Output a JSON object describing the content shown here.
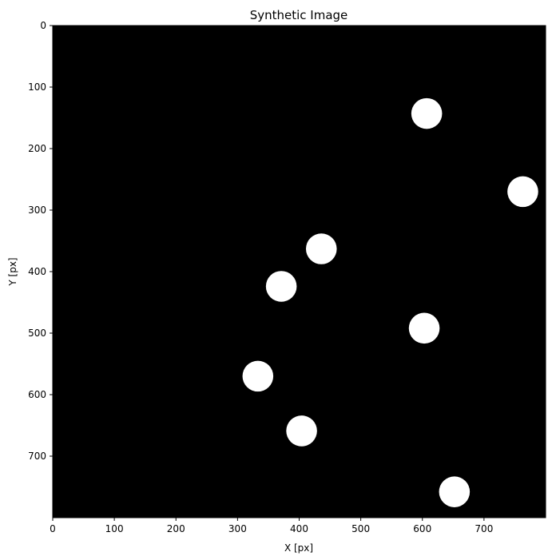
{
  "chart_data": {
    "type": "scatter",
    "title": "Synthetic Image",
    "xlabel": "X [px]",
    "ylabel": "Y [px]",
    "xlim": [
      0,
      800
    ],
    "ylim": [
      800,
      0
    ],
    "y_axis_inverted": true,
    "grid": false,
    "legend": "none",
    "x_ticks": [
      0,
      100,
      200,
      300,
      400,
      500,
      600,
      700
    ],
    "y_ticks": [
      0,
      100,
      200,
      300,
      400,
      500,
      600,
      700
    ],
    "background_color": "#000000",
    "marker_color": "#ffffff",
    "marker_shape": "filled-circle",
    "marker_radius": 25,
    "points": [
      {
        "x": 607,
        "y": 143
      },
      {
        "x": 763,
        "y": 270
      },
      {
        "x": 436,
        "y": 363
      },
      {
        "x": 371,
        "y": 424
      },
      {
        "x": 603,
        "y": 492
      },
      {
        "x": 333,
        "y": 570
      },
      {
        "x": 404,
        "y": 659
      },
      {
        "x": 652,
        "y": 758
      }
    ]
  }
}
